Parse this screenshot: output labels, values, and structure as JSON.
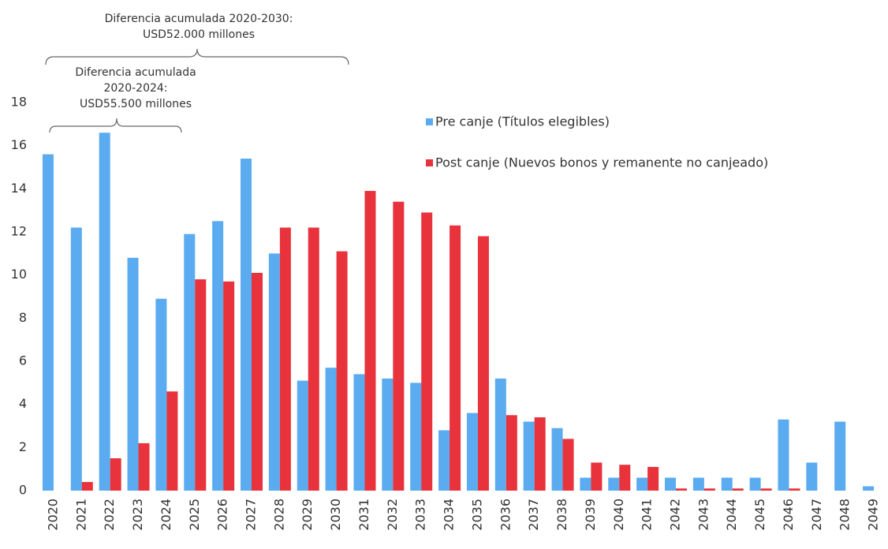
{
  "chart_data": {
    "type": "bar",
    "categories": [
      "2020",
      "2021",
      "2022",
      "2023",
      "2024",
      "2025",
      "2026",
      "2027",
      "2028",
      "2029",
      "2030",
      "2031",
      "2032",
      "2033",
      "2034",
      "2035",
      "2036",
      "2037",
      "2038",
      "2039",
      "2040",
      "2041",
      "2042",
      "2043",
      "2044",
      "2045",
      "2046",
      "2047",
      "2048",
      "2049"
    ],
    "series": [
      {
        "name": "Pre canje (Títulos elegibles)",
        "color": "#5aabf0",
        "values": [
          15.6,
          12.2,
          16.6,
          10.8,
          8.9,
          11.9,
          12.5,
          15.4,
          11.0,
          5.1,
          5.7,
          5.4,
          5.2,
          5.0,
          2.8,
          3.6,
          5.2,
          3.2,
          2.9,
          0.6,
          0.6,
          0.6,
          0.6,
          0.6,
          0.6,
          0.6,
          3.3,
          1.3,
          3.2,
          0.2
        ]
      },
      {
        "name": "Post canje (Nuevos bonos y remanente no canjeado)",
        "color": "#e8323c",
        "values": [
          0,
          0.4,
          1.5,
          2.2,
          4.6,
          9.8,
          9.7,
          10.1,
          12.2,
          12.2,
          11.1,
          13.9,
          13.4,
          12.9,
          12.3,
          11.8,
          3.5,
          3.4,
          2.4,
          1.3,
          1.2,
          1.1,
          0.1,
          0.1,
          0.1,
          0.1,
          0.1,
          0,
          0,
          0
        ]
      }
    ],
    "ylim": [
      0,
      18
    ],
    "yticks": [
      0,
      2,
      4,
      6,
      8,
      10,
      12,
      14,
      16,
      18
    ],
    "grid": false,
    "annotations": [
      {
        "lines": [
          "Diferencia acumulada 2020-2030:",
          "USD52.000 millones"
        ]
      },
      {
        "lines": [
          "Diferencia acumulada",
          "2020-2024:",
          "USD55.500 millones"
        ]
      }
    ]
  }
}
